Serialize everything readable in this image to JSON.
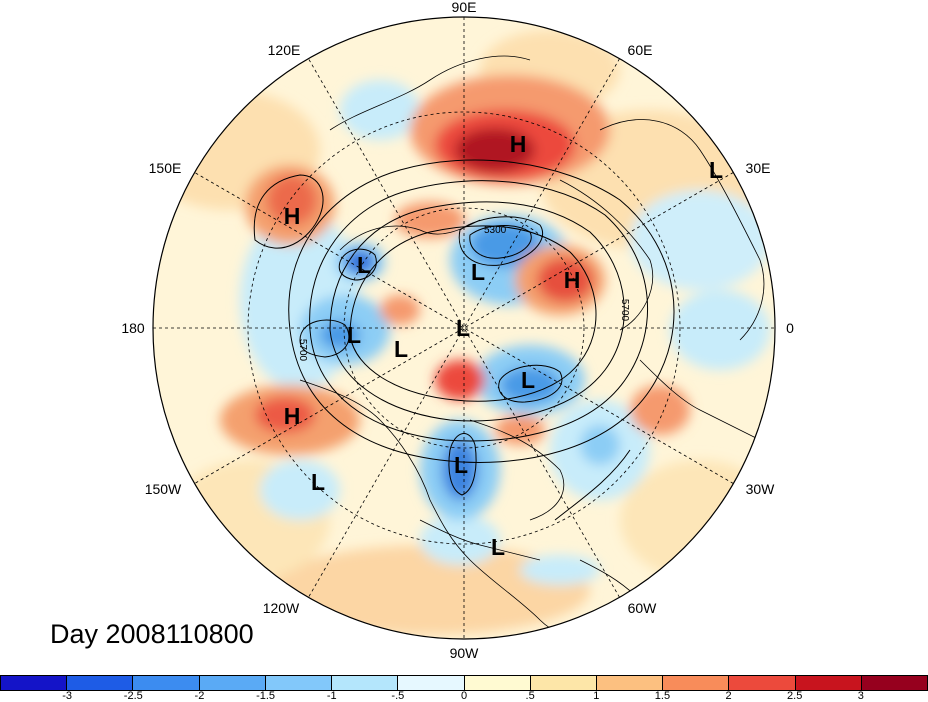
{
  "map": {
    "day_label": "Day 2008110800",
    "longitude_labels": [
      "90E",
      "60E",
      "30E",
      "0",
      "30W",
      "60W",
      "90W",
      "120W",
      "150W",
      "180",
      "150E",
      "120E"
    ],
    "pressure_systems": [
      {
        "type": "H",
        "label": "H"
      },
      {
        "type": "L",
        "label": "L"
      },
      {
        "type": "H",
        "label": "H"
      },
      {
        "type": "L",
        "label": "L"
      },
      {
        "type": "L",
        "label": "L"
      },
      {
        "type": "H",
        "label": "H"
      },
      {
        "type": "L",
        "label": "L"
      },
      {
        "type": "L",
        "label": "L"
      },
      {
        "type": "L",
        "label": "L"
      },
      {
        "type": "L",
        "label": "L"
      },
      {
        "type": "H",
        "label": "H"
      },
      {
        "type": "L",
        "label": "L"
      },
      {
        "type": "L",
        "label": "L"
      },
      {
        "type": "L",
        "label": "L"
      }
    ],
    "contour_labels": [
      "5300",
      "5700",
      "5700"
    ],
    "anomaly_colors": {
      "strong_positive": "#a50f15",
      "positive": "#ef3b2c",
      "weak_positive": "#fdbb84",
      "neutral": "#fff7d6",
      "weak_negative": "#c6e8f7",
      "negative": "#6baed6",
      "strong_negative": "#1f5fd6"
    }
  },
  "colorbar": {
    "tick_labels": [
      "-3",
      "-2.5",
      "-2",
      "-1.5",
      "-1",
      "-.5",
      "0",
      ".5",
      "1",
      "1.5",
      "2",
      "2.5",
      "3"
    ],
    "colors": [
      "#1414c8",
      "#1e5ce6",
      "#3c8cf0",
      "#5aaaf5",
      "#82c8fa",
      "#b4e6fc",
      "#e6f8ff",
      "#fffad2",
      "#fde6a8",
      "#fcc080",
      "#f88c5a",
      "#ec4a3c",
      "#c8141e",
      "#96001e"
    ]
  }
}
